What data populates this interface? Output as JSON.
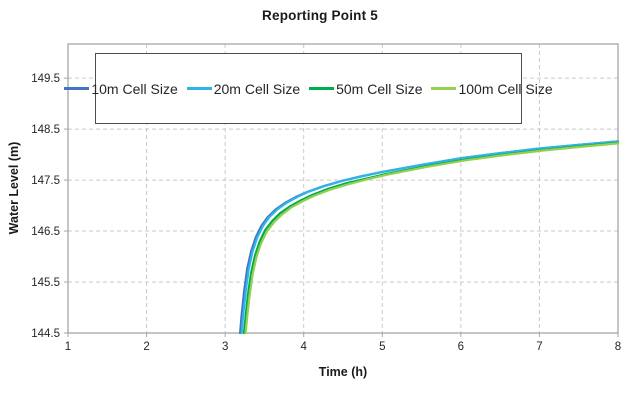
{
  "title": "Reporting Point 5",
  "axes": {
    "x_title": "Time (h)",
    "y_title": "Water Level (m)"
  },
  "legend": {
    "entries": [
      {
        "label": "10m Cell Size",
        "color": "#4472C4"
      },
      {
        "label": "20m Cell Size",
        "color": "#2FB4E9"
      },
      {
        "label": "50m Cell Size",
        "color": "#00AC4B"
      },
      {
        "label": "100m Cell Size",
        "color": "#92D050"
      }
    ]
  },
  "colors": {
    "frame": "#A6A6A6",
    "gridline": "#C9C9C9",
    "tick_label": "#262626",
    "background": "#FFFFFF"
  },
  "chart_data": {
    "type": "line",
    "title": "Reporting Point 5",
    "xlabel": "Time (h)",
    "ylabel": "Water Level (m)",
    "xlim": [
      1,
      8
    ],
    "ylim": [
      144.5,
      150.17
    ],
    "x_ticks": [
      1,
      2,
      3,
      4,
      5,
      6,
      7,
      8
    ],
    "y_ticks": [
      144.5,
      145.5,
      146.5,
      147.5,
      148.5,
      149.5
    ],
    "grid": true,
    "grid_style": "dashed",
    "legend_position": "top-inside",
    "series": [
      {
        "name": "10m Cell Size",
        "color": "#4472C4",
        "points": [
          [
            3.19,
            144.5
          ],
          [
            3.21,
            144.85
          ],
          [
            3.24,
            145.3
          ],
          [
            3.28,
            145.75
          ],
          [
            3.33,
            146.1
          ],
          [
            3.39,
            146.38
          ],
          [
            3.46,
            146.6
          ],
          [
            3.54,
            146.77
          ],
          [
            3.64,
            146.92
          ],
          [
            3.76,
            147.05
          ],
          [
            3.9,
            147.17
          ],
          [
            4.05,
            147.27
          ],
          [
            4.25,
            147.38
          ],
          [
            4.5,
            147.49
          ],
          [
            4.75,
            147.58
          ],
          [
            5.0,
            147.66
          ],
          [
            5.5,
            147.8
          ],
          [
            6.0,
            147.93
          ],
          [
            6.5,
            148.03
          ],
          [
            7.0,
            148.12
          ],
          [
            7.5,
            148.19
          ],
          [
            8.0,
            148.26
          ]
        ]
      },
      {
        "name": "20m Cell Size",
        "color": "#2FB4E9",
        "points": [
          [
            3.21,
            144.5
          ],
          [
            3.23,
            144.85
          ],
          [
            3.26,
            145.3
          ],
          [
            3.3,
            145.75
          ],
          [
            3.35,
            146.1
          ],
          [
            3.41,
            146.38
          ],
          [
            3.48,
            146.6
          ],
          [
            3.56,
            146.77
          ],
          [
            3.66,
            146.92
          ],
          [
            3.78,
            147.05
          ],
          [
            3.92,
            147.17
          ],
          [
            4.06,
            147.27
          ],
          [
            4.26,
            147.38
          ],
          [
            4.51,
            147.49
          ],
          [
            4.76,
            147.58
          ],
          [
            5.0,
            147.66
          ],
          [
            5.5,
            147.8
          ],
          [
            6.0,
            147.93
          ],
          [
            6.5,
            148.03
          ],
          [
            7.0,
            148.12
          ],
          [
            7.5,
            148.19
          ],
          [
            8.0,
            148.26
          ]
        ]
      },
      {
        "name": "50m Cell Size",
        "color": "#00AC4B",
        "points": [
          [
            3.24,
            144.5
          ],
          [
            3.26,
            144.82
          ],
          [
            3.29,
            145.25
          ],
          [
            3.33,
            145.68
          ],
          [
            3.38,
            146.02
          ],
          [
            3.44,
            146.3
          ],
          [
            3.51,
            146.52
          ],
          [
            3.6,
            146.7
          ],
          [
            3.7,
            146.85
          ],
          [
            3.82,
            146.98
          ],
          [
            3.96,
            147.1
          ],
          [
            4.11,
            147.21
          ],
          [
            4.31,
            147.33
          ],
          [
            4.55,
            147.44
          ],
          [
            4.8,
            147.53
          ],
          [
            5.05,
            147.62
          ],
          [
            5.55,
            147.77
          ],
          [
            6.05,
            147.9
          ],
          [
            6.55,
            148.0
          ],
          [
            7.05,
            148.09
          ],
          [
            7.5,
            148.16
          ],
          [
            8.0,
            148.23
          ]
        ]
      },
      {
        "name": "100m Cell Size",
        "color": "#92D050",
        "points": [
          [
            3.26,
            144.5
          ],
          [
            3.28,
            144.8
          ],
          [
            3.31,
            145.22
          ],
          [
            3.35,
            145.65
          ],
          [
            3.4,
            146.0
          ],
          [
            3.46,
            146.27
          ],
          [
            3.53,
            146.49
          ],
          [
            3.62,
            146.67
          ],
          [
            3.72,
            146.82
          ],
          [
            3.84,
            146.96
          ],
          [
            3.98,
            147.08
          ],
          [
            4.13,
            147.19
          ],
          [
            4.33,
            147.31
          ],
          [
            4.57,
            147.42
          ],
          [
            4.82,
            147.52
          ],
          [
            5.07,
            147.61
          ],
          [
            5.57,
            147.76
          ],
          [
            6.07,
            147.89
          ],
          [
            6.55,
            147.99
          ],
          [
            7.05,
            148.08
          ],
          [
            7.5,
            148.15
          ],
          [
            8.0,
            148.22
          ]
        ]
      }
    ]
  }
}
